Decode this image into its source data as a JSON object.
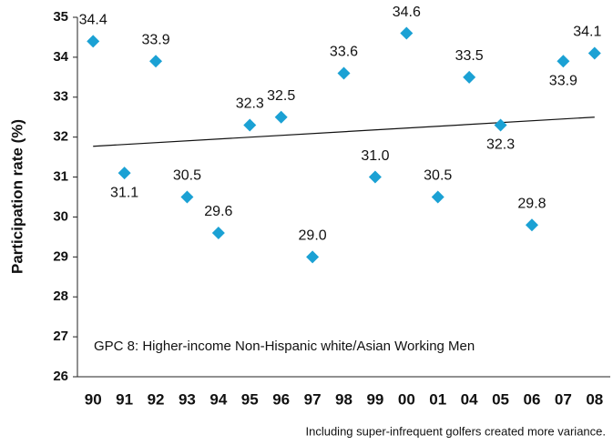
{
  "chart_data": {
    "type": "scatter",
    "y_axis_label": "Participation rate (%)",
    "annotation": "GPC 8: Higher-income Non-Hispanic white/Asian Working Men",
    "footnote": "Including super-infrequent golfers created more variance.",
    "categories": [
      "90",
      "91",
      "92",
      "93",
      "94",
      "95",
      "96",
      "97",
      "98",
      "99",
      "00",
      "01",
      "04",
      "05",
      "06",
      "07",
      "08"
    ],
    "values": [
      34.4,
      31.1,
      33.9,
      30.5,
      29.6,
      32.3,
      32.5,
      29.0,
      33.6,
      31.0,
      34.6,
      30.5,
      33.5,
      32.3,
      29.8,
      33.9,
      34.1
    ],
    "value_labels": [
      "34.4",
      "31.1",
      "33.9",
      "30.5",
      "29.6",
      "32.3",
      "32.5",
      "29.0",
      "33.6",
      "31.0",
      "34.6",
      "30.5",
      "33.5",
      "32.3",
      "29.8",
      "33.9",
      "34.1"
    ],
    "label_position": [
      "above",
      "below",
      "above",
      "above",
      "above",
      "above",
      "above",
      "above",
      "above",
      "above",
      "above",
      "above",
      "above",
      "below",
      "above",
      "below",
      "above"
    ],
    "color": "#1ba1d4",
    "trend": {
      "start": 31.77,
      "end": 32.5
    },
    "ylim": [
      26,
      35
    ],
    "yticks": [
      26,
      27,
      28,
      29,
      30,
      31,
      32,
      33,
      34,
      35
    ]
  }
}
